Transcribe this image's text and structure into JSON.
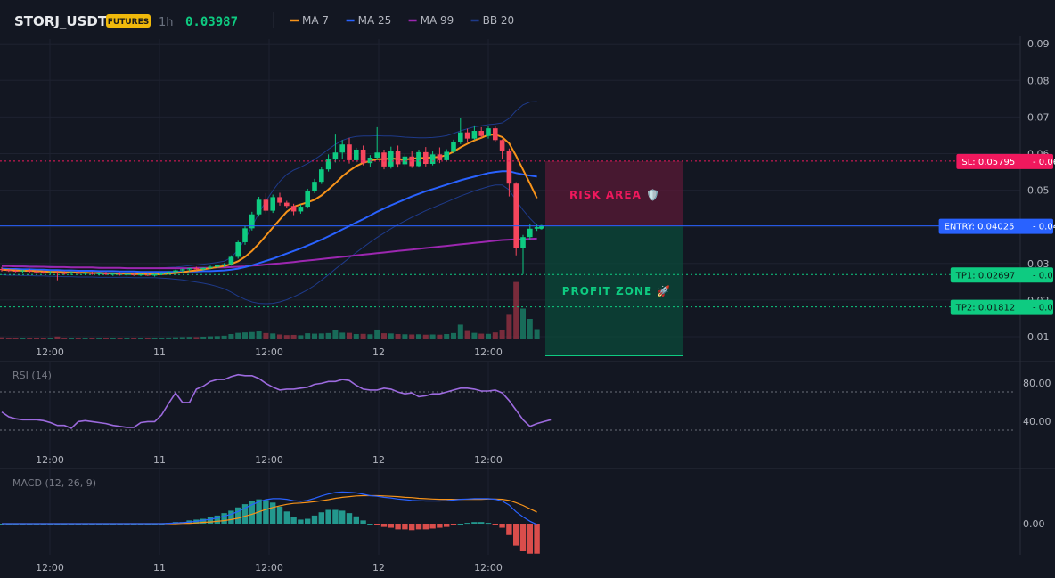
{
  "header": {
    "symbol": "STORJ_USDT",
    "badge": "FUTURES",
    "interval": "1h",
    "last_price": "0.03987",
    "legend": [
      {
        "label": "MA 7",
        "color": "#f7931a"
      },
      {
        "label": "MA 25",
        "color": "#2962ff"
      },
      {
        "label": "MA 99",
        "color": "#9c27b0"
      },
      {
        "label": "BB 20",
        "color": "#1e3a8a"
      }
    ]
  },
  "colors": {
    "up": "#0ecb81",
    "down": "#f6465d",
    "background": "#131722",
    "grid": "#1e2230",
    "sl": "#f0185d",
    "entry": "#2962ff",
    "tp": "#0ecb81",
    "rsi": "#9c6ade"
  },
  "price_axis": {
    "ticks": [
      "0.09",
      "0.08",
      "0.07",
      "0.06",
      "0.05",
      "0.04",
      "0.03",
      "0.02",
      "0.01"
    ]
  },
  "time_axis": {
    "ticks": [
      "12:00",
      "11",
      "12:00",
      "12",
      "12:00"
    ]
  },
  "levels": {
    "sl": {
      "label": "SL: 0.05795",
      "value": 0.05795,
      "axis": "0.06"
    },
    "entry": {
      "label": "ENTRY: 0.04025",
      "value": 0.04025,
      "axis": "0.04"
    },
    "tp1": {
      "label": "TP1: 0.02697",
      "value": 0.02697,
      "axis": "0.03"
    },
    "tp2": {
      "label": "TP2: 0.01812",
      "value": 0.01812,
      "axis": "0.02"
    }
  },
  "zones": {
    "risk": "RISK AREA 🛡️",
    "profit": "PROFIT ZONE 🚀"
  },
  "rsi": {
    "title": "RSI (14)",
    "ticks": [
      "80.00",
      "40.00"
    ]
  },
  "macd": {
    "title": "MACD (12, 26, 9)",
    "ticks": [
      "0.00"
    ]
  },
  "chart_data": {
    "type": "candlestick",
    "candles": [
      [
        0.0285,
        0.029,
        0.0278,
        0.0282
      ],
      [
        0.0282,
        0.0286,
        0.0277,
        0.028
      ],
      [
        0.028,
        0.0284,
        0.0276,
        0.0279
      ],
      [
        0.0279,
        0.0283,
        0.0275,
        0.0281
      ],
      [
        0.0281,
        0.0285,
        0.0274,
        0.0278
      ],
      [
        0.0278,
        0.0282,
        0.0273,
        0.0277
      ],
      [
        0.0277,
        0.028,
        0.0272,
        0.0275
      ],
      [
        0.0275,
        0.0279,
        0.0271,
        0.0276
      ],
      [
        0.0276,
        0.028,
        0.0254,
        0.0274
      ],
      [
        0.0274,
        0.0279,
        0.0269,
        0.0273
      ],
      [
        0.0273,
        0.0278,
        0.0268,
        0.0276
      ],
      [
        0.0276,
        0.028,
        0.0271,
        0.0272
      ],
      [
        0.0272,
        0.0276,
        0.0268,
        0.0274
      ],
      [
        0.0274,
        0.0278,
        0.0269,
        0.0271
      ],
      [
        0.0271,
        0.0275,
        0.0267,
        0.0273
      ],
      [
        0.0273,
        0.0277,
        0.0268,
        0.027
      ],
      [
        0.027,
        0.0274,
        0.0266,
        0.0272
      ],
      [
        0.0272,
        0.0276,
        0.0267,
        0.0269
      ],
      [
        0.0269,
        0.0273,
        0.0265,
        0.0271
      ],
      [
        0.0271,
        0.0275,
        0.0266,
        0.0268
      ],
      [
        0.0268,
        0.0272,
        0.0265,
        0.027
      ],
      [
        0.027,
        0.0274,
        0.0266,
        0.0267
      ],
      [
        0.0267,
        0.0272,
        0.0264,
        0.0271
      ],
      [
        0.0271,
        0.0276,
        0.0268,
        0.0274
      ],
      [
        0.0274,
        0.0279,
        0.027,
        0.0277
      ],
      [
        0.0277,
        0.0283,
        0.0273,
        0.0281
      ],
      [
        0.0281,
        0.0286,
        0.0276,
        0.0284
      ],
      [
        0.0284,
        0.0288,
        0.0279,
        0.0287
      ],
      [
        0.0287,
        0.0291,
        0.0281,
        0.0284
      ],
      [
        0.0284,
        0.0289,
        0.0281,
        0.0288
      ],
      [
        0.0288,
        0.0294,
        0.0284,
        0.0291
      ],
      [
        0.0291,
        0.0297,
        0.0287,
        0.0295
      ],
      [
        0.0295,
        0.0301,
        0.029,
        0.0298
      ],
      [
        0.0298,
        0.0322,
        0.0294,
        0.0318
      ],
      [
        0.0318,
        0.0362,
        0.0313,
        0.0358
      ],
      [
        0.0358,
        0.0402,
        0.0351,
        0.0396
      ],
      [
        0.0396,
        0.0441,
        0.039,
        0.0434
      ],
      [
        0.0434,
        0.0482,
        0.0428,
        0.0474
      ],
      [
        0.0474,
        0.0492,
        0.0437,
        0.0444
      ],
      [
        0.0444,
        0.0488,
        0.0438,
        0.0481
      ],
      [
        0.0481,
        0.0493,
        0.0458,
        0.0466
      ],
      [
        0.0466,
        0.0471,
        0.0451,
        0.0457
      ],
      [
        0.0457,
        0.0463,
        0.0432,
        0.0442
      ],
      [
        0.0442,
        0.0461,
        0.0436,
        0.0455
      ],
      [
        0.0455,
        0.0504,
        0.045,
        0.0498
      ],
      [
        0.0498,
        0.0531,
        0.0492,
        0.0523
      ],
      [
        0.0523,
        0.0564,
        0.0517,
        0.0557
      ],
      [
        0.0557,
        0.0598,
        0.0551,
        0.0584
      ],
      [
        0.0584,
        0.0652,
        0.0576,
        0.0603
      ],
      [
        0.0603,
        0.0637,
        0.0585,
        0.0625
      ],
      [
        0.0625,
        0.0643,
        0.0573,
        0.0582
      ],
      [
        0.0582,
        0.0616,
        0.0576,
        0.0611
      ],
      [
        0.0611,
        0.0622,
        0.0568,
        0.0574
      ],
      [
        0.0574,
        0.0596,
        0.0564,
        0.0589
      ],
      [
        0.0589,
        0.0672,
        0.0583,
        0.0603
      ],
      [
        0.0603,
        0.0611,
        0.0557,
        0.0565
      ],
      [
        0.0565,
        0.0619,
        0.0559,
        0.0608
      ],
      [
        0.0608,
        0.0622,
        0.0562,
        0.0571
      ],
      [
        0.0571,
        0.0599,
        0.0566,
        0.0592
      ],
      [
        0.0592,
        0.0606,
        0.0561,
        0.0566
      ],
      [
        0.0566,
        0.0611,
        0.0562,
        0.0604
      ],
      [
        0.0604,
        0.0618,
        0.0565,
        0.0572
      ],
      [
        0.0572,
        0.0606,
        0.0568,
        0.0598
      ],
      [
        0.0598,
        0.0617,
        0.0574,
        0.0582
      ],
      [
        0.0582,
        0.0612,
        0.0578,
        0.0605
      ],
      [
        0.0605,
        0.0638,
        0.0601,
        0.0631
      ],
      [
        0.0631,
        0.0698,
        0.0626,
        0.0658
      ],
      [
        0.0658,
        0.0668,
        0.0632,
        0.0641
      ],
      [
        0.0641,
        0.0677,
        0.0637,
        0.0662
      ],
      [
        0.0662,
        0.0672,
        0.0643,
        0.0648
      ],
      [
        0.0648,
        0.0676,
        0.0641,
        0.0669
      ],
      [
        0.0669,
        0.0674,
        0.0633,
        0.0637
      ],
      [
        0.0637,
        0.0639,
        0.0584,
        0.0608
      ],
      [
        0.0608,
        0.0614,
        0.0483,
        0.0518
      ],
      [
        0.0518,
        0.0522,
        0.0322,
        0.0343
      ],
      [
        0.0343,
        0.0378,
        0.0271,
        0.0372
      ],
      [
        0.0372,
        0.0409,
        0.0363,
        0.0395
      ],
      [
        0.0395,
        0.0406,
        0.0389,
        0.0399
      ]
    ],
    "ma7": [
      0.0283,
      0.0282,
      0.0281,
      0.028,
      0.028,
      0.0279,
      0.0278,
      0.0277,
      0.0277,
      0.0276,
      0.0276,
      0.0275,
      0.0275,
      0.0274,
      0.0274,
      0.0273,
      0.0273,
      0.0272,
      0.0272,
      0.0271,
      0.0271,
      0.0271,
      0.027,
      0.0271,
      0.0272,
      0.0274,
      0.0276,
      0.0279,
      0.0281,
      0.0284,
      0.0287,
      0.029,
      0.0293,
      0.0298,
      0.0306,
      0.0318,
      0.0334,
      0.0354,
      0.0376,
      0.0398,
      0.042,
      0.0441,
      0.0455,
      0.0461,
      0.0467,
      0.0474,
      0.0486,
      0.0502,
      0.0519,
      0.0538,
      0.0553,
      0.0566,
      0.0575,
      0.058,
      0.0585,
      0.0585,
      0.0587,
      0.0585,
      0.0584,
      0.0586,
      0.0588,
      0.0588,
      0.059,
      0.0591,
      0.0596,
      0.0605,
      0.0617,
      0.0627,
      0.0636,
      0.0643,
      0.0651,
      0.0652,
      0.0645,
      0.0628,
      0.0594,
      0.0556,
      0.0518,
      0.0478
    ],
    "ma25": [
      0.0286,
      0.0285,
      0.0285,
      0.0284,
      0.0284,
      0.0283,
      0.0283,
      0.0282,
      0.0282,
      0.0281,
      0.0281,
      0.028,
      0.028,
      0.028,
      0.0279,
      0.0279,
      0.0279,
      0.0278,
      0.0278,
      0.0278,
      0.0277,
      0.0277,
      0.0277,
      0.0277,
      0.0277,
      0.0277,
      0.0277,
      0.0278,
      0.0278,
      0.0279,
      0.0279,
      0.028,
      0.0281,
      0.0283,
      0.0286,
      0.029,
      0.0295,
      0.0301,
      0.0307,
      0.0313,
      0.032,
      0.0327,
      0.0334,
      0.0341,
      0.0349,
      0.0357,
      0.0365,
      0.0374,
      0.0383,
      0.0393,
      0.0402,
      0.0412,
      0.0421,
      0.0431,
      0.0441,
      0.045,
      0.0459,
      0.0467,
      0.0475,
      0.0483,
      0.049,
      0.0497,
      0.0503,
      0.0509,
      0.0515,
      0.0521,
      0.0527,
      0.0532,
      0.0537,
      0.0542,
      0.0547,
      0.055,
      0.0552,
      0.0552,
      0.0547,
      0.0543,
      0.054,
      0.0537
    ],
    "ma99": [
      0.0293,
      0.0293,
      0.0292,
      0.0292,
      0.0291,
      0.0291,
      0.0291,
      0.029,
      0.029,
      0.029,
      0.0289,
      0.0289,
      0.0289,
      0.0289,
      0.0288,
      0.0288,
      0.0288,
      0.0288,
      0.0287,
      0.0287,
      0.0287,
      0.0287,
      0.0287,
      0.0287,
      0.0287,
      0.0287,
      0.0287,
      0.0287,
      0.0288,
      0.0288,
      0.0288,
      0.0289,
      0.0289,
      0.029,
      0.0291,
      0.0292,
      0.0294,
      0.0295,
      0.0297,
      0.0299,
      0.03,
      0.0302,
      0.0304,
      0.0306,
      0.0308,
      0.031,
      0.0312,
      0.0314,
      0.0316,
      0.0318,
      0.032,
      0.0322,
      0.0324,
      0.0326,
      0.0328,
      0.033,
      0.0332,
      0.0334,
      0.0336,
      0.0338,
      0.034,
      0.0342,
      0.0344,
      0.0346,
      0.0348,
      0.035,
      0.0352,
      0.0354,
      0.0356,
      0.0358,
      0.036,
      0.0362,
      0.0364,
      0.0365,
      0.0366,
      0.0366,
      0.0367,
      0.0368
    ],
    "bb_upper": [
      0.0295,
      0.0295,
      0.0294,
      0.0294,
      0.0293,
      0.0293,
      0.0292,
      0.0292,
      0.0291,
      0.0291,
      0.029,
      0.029,
      0.0289,
      0.0289,
      0.0289,
      0.0288,
      0.0288,
      0.0288,
      0.0287,
      0.0287,
      0.0287,
      0.0287,
      0.0287,
      0.0288,
      0.0289,
      0.029,
      0.0292,
      0.0294,
      0.0296,
      0.0298,
      0.03,
      0.0303,
      0.0306,
      0.0316,
      0.0337,
      0.0366,
      0.0401,
      0.0438,
      0.047,
      0.0499,
      0.0524,
      0.0543,
      0.0555,
      0.0563,
      0.0573,
      0.0584,
      0.0597,
      0.0612,
      0.0625,
      0.0636,
      0.0643,
      0.0647,
      0.0648,
      0.0648,
      0.0649,
      0.0648,
      0.0648,
      0.0647,
      0.0645,
      0.0644,
      0.0643,
      0.0643,
      0.0644,
      0.0646,
      0.0649,
      0.0655,
      0.0662,
      0.0668,
      0.0673,
      0.0676,
      0.0679,
      0.0681,
      0.0684,
      0.0696,
      0.0717,
      0.0733,
      0.0741,
      0.0742
    ],
    "bb_lower": [
      0.0269,
      0.0268,
      0.0268,
      0.0267,
      0.0267,
      0.0266,
      0.0266,
      0.0265,
      0.0265,
      0.0264,
      0.0264,
      0.0263,
      0.0263,
      0.0263,
      0.0262,
      0.0262,
      0.0262,
      0.0262,
      0.0262,
      0.0261,
      0.0261,
      0.0261,
      0.0261,
      0.026,
      0.0259,
      0.0257,
      0.0255,
      0.0252,
      0.0249,
      0.0246,
      0.0242,
      0.0237,
      0.0231,
      0.0222,
      0.0211,
      0.0202,
      0.0195,
      0.0191,
      0.019,
      0.0191,
      0.0195,
      0.0201,
      0.0209,
      0.0218,
      0.0228,
      0.024,
      0.0254,
      0.0269,
      0.0285,
      0.03,
      0.0315,
      0.033,
      0.0344,
      0.0358,
      0.0371,
      0.0383,
      0.0395,
      0.0406,
      0.0416,
      0.0426,
      0.0435,
      0.0444,
      0.0452,
      0.046,
      0.0468,
      0.0476,
      0.0484,
      0.0491,
      0.0498,
      0.0504,
      0.051,
      0.0514,
      0.0514,
      0.0501,
      0.0472,
      0.0446,
      0.0423,
      0.0404
    ],
    "volume": [
      1,
      0.6,
      0.5,
      0.7,
      0.6,
      0.8,
      0.5,
      0.6,
      1.4,
      0.6,
      0.7,
      0.5,
      0.6,
      0.5,
      0.6,
      0.5,
      0.6,
      0.5,
      0.6,
      0.5,
      0.6,
      0.5,
      0.7,
      0.8,
      0.9,
      1,
      1.1,
      1.2,
      1.1,
      1.3,
      1.5,
      1.6,
      1.8,
      2.6,
      3.2,
      3.4,
      3.6,
      3.9,
      3.1,
      2.9,
      2.4,
      2.1,
      2.2,
      2,
      3,
      2.8,
      2.9,
      3.1,
      4.4,
      3.3,
      3.2,
      2.6,
      2.7,
      2.5,
      4.8,
      3,
      2.9,
      2.6,
      2.5,
      2.4,
      2.5,
      2.3,
      2.4,
      2.3,
      2.6,
      3.1,
      7.2,
      4.1,
      3.2,
      2.8,
      2.7,
      3.4,
      4.6,
      12,
      28,
      15,
      10,
      5
    ],
    "rsi": [
      48,
      43,
      41,
      40,
      40,
      40,
      39,
      37,
      34,
      34,
      31,
      38,
      39,
      38,
      37,
      36,
      34,
      33,
      32,
      32,
      37,
      38,
      38,
      45,
      57,
      68,
      58,
      58,
      72,
      75,
      80,
      82,
      82,
      85,
      87,
      86,
      86,
      83,
      78,
      74,
      71,
      72,
      72,
      73,
      74,
      77,
      78,
      80,
      80,
      82,
      81,
      76,
      72,
      71,
      71,
      73,
      72,
      69,
      67,
      68,
      64,
      65,
      67,
      67,
      69,
      71,
      73,
      73,
      72,
      70,
      70,
      71,
      68,
      60,
      50,
      40,
      33,
      36,
      38,
      40
    ],
    "macd": [
      0,
      0,
      0,
      0,
      0,
      0,
      0,
      0,
      0,
      0,
      0,
      0,
      0,
      0,
      0,
      0,
      0,
      0,
      0,
      0,
      0,
      0,
      0,
      0,
      0.0001,
      0.0002,
      0.0003,
      0.0005,
      0.0007,
      0.001,
      0.0013,
      0.0017,
      0.0022,
      0.0028,
      0.0036,
      0.0046,
      0.0056,
      0.0065,
      0.0071,
      0.0074,
      0.0074,
      0.0072,
      0.0068,
      0.0066,
      0.0069,
      0.0075,
      0.0082,
      0.0088,
      0.0092,
      0.0094,
      0.0093,
      0.0091,
      0.0087,
      0.0083,
      0.0081,
      0.0078,
      0.0076,
      0.0073,
      0.0071,
      0.0069,
      0.0068,
      0.0067,
      0.0067,
      0.0067,
      0.0068,
      0.007,
      0.0072,
      0.0073,
      0.0074,
      0.0074,
      0.0074,
      0.0072,
      0.0067,
      0.0055,
      0.0035,
      0.002,
      0.0007,
      -0.0003
    ],
    "macd_signal": [
      0,
      0,
      0,
      0,
      0,
      0,
      0,
      0,
      0,
      0,
      0,
      0,
      0,
      0,
      0,
      0,
      0,
      0,
      0,
      0,
      0,
      0,
      0,
      0,
      0,
      0,
      0.0001,
      0.0001,
      0.0002,
      0.0004,
      0.0005,
      0.0007,
      0.0009,
      0.0012,
      0.0016,
      0.0022,
      0.0028,
      0.0035,
      0.0042,
      0.0048,
      0.0053,
      0.0057,
      0.006,
      0.0061,
      0.0063,
      0.0065,
      0.0068,
      0.0071,
      0.0075,
      0.0078,
      0.008,
      0.0082,
      0.0083,
      0.0083,
      0.0083,
      0.0082,
      0.0081,
      0.008,
      0.0078,
      0.0077,
      0.0075,
      0.0074,
      0.0073,
      0.0072,
      0.0072,
      0.0072,
      0.0072,
      0.0072,
      0.0072,
      0.0072,
      0.0073,
      0.0073,
      0.0072,
      0.0069,
      0.0062,
      0.0054,
      0.0044,
      0.0034
    ]
  }
}
